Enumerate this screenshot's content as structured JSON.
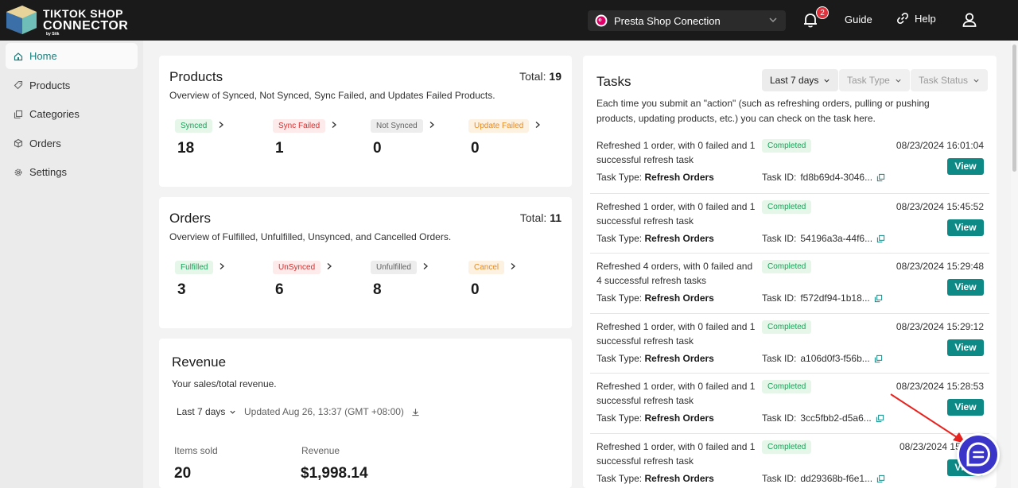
{
  "header": {
    "logo": {
      "line1": "TIKTOK SHOP",
      "line2": "CONNECTOR",
      "line3": "by Sitk"
    },
    "shop_selector": "Presta Shop Conection",
    "notification_count": "2",
    "guide": "Guide",
    "help": "Help"
  },
  "sidebar": {
    "items": [
      {
        "label": "Home",
        "icon": "home-icon"
      },
      {
        "label": "Products",
        "icon": "tag-icon"
      },
      {
        "label": "Categories",
        "icon": "copy-icon"
      },
      {
        "label": "Orders",
        "icon": "box-icon"
      },
      {
        "label": "Settings",
        "icon": "gear-icon"
      }
    ]
  },
  "products": {
    "title": "Products",
    "total_label": "Total: ",
    "total": "19",
    "subtitle": "Overview of Synced, Not Synced, Sync Failed, and Updates Failed Products.",
    "stats": [
      {
        "label": "Synced",
        "value": "18",
        "color": "#18a058"
      },
      {
        "label": "Sync Failed",
        "value": "1",
        "color": "#d32f2f"
      },
      {
        "label": "Not Synced",
        "value": "0",
        "color": "#616161"
      },
      {
        "label": "Update Failed",
        "value": "0",
        "color": "#e58a1f"
      }
    ]
  },
  "orders": {
    "title": "Orders",
    "total_label": "Total: ",
    "total": "11",
    "subtitle": "Overview of Fulfilled, Unfulfilled, Unsynced, and Cancelled Orders.",
    "stats": [
      {
        "label": "Fulfilled",
        "value": "3",
        "color": "#18a058"
      },
      {
        "label": "UnSynced",
        "value": "6",
        "color": "#d32f2f"
      },
      {
        "label": "Unfulfilled",
        "value": "8",
        "color": "#616161"
      },
      {
        "label": "Cancel",
        "value": "0",
        "color": "#e58a1f"
      }
    ]
  },
  "revenue": {
    "title": "Revenue",
    "subtitle": "Your sales/total revenue.",
    "range": "Last 7 days",
    "updated": "Updated Aug 26, 13:37 (GMT +08:00)",
    "items_sold_label": "Items sold",
    "items_sold": "20",
    "revenue_label": "Revenue",
    "revenue_value": "$1,998.14"
  },
  "tasks": {
    "title": "Tasks",
    "filters": {
      "range": "Last 7 days",
      "type": "Task Type",
      "status": "Task Status"
    },
    "description": "Each time you submit an \"action\" (such as refreshing orders, pulling or pushing products, updating products, etc.) you can check on the task here.",
    "type_label": "Task Type: ",
    "id_label": "Task ID: ",
    "view_label": "View",
    "items": [
      {
        "desc": "Refreshed 1 order, with 0 failed and 1 successful refresh task",
        "status": "Completed",
        "date": "08/23/2024 16:01:04",
        "type": "Refresh Orders",
        "id": "fd8b69d4-3046..."
      },
      {
        "desc": "Refreshed 1 order, with 0 failed and 1 successful refresh task",
        "status": "Completed",
        "date": "08/23/2024 15:45:52",
        "type": "Refresh Orders",
        "id": "54196a3a-44f6..."
      },
      {
        "desc": "Refreshed 4 orders, with 0 failed and 4 successful refresh tasks",
        "status": "Completed",
        "date": "08/23/2024 15:29:48",
        "type": "Refresh Orders",
        "id": "f572df94-1b18..."
      },
      {
        "desc": "Refreshed 1 order, with 0 failed and 1 successful refresh task",
        "status": "Completed",
        "date": "08/23/2024 15:29:12",
        "type": "Refresh Orders",
        "id": "a106d0f3-f56b..."
      },
      {
        "desc": "Refreshed 1 order, with 0 failed and 1 successful refresh task",
        "status": "Completed",
        "date": "08/23/2024 15:28:53",
        "type": "Refresh Orders",
        "id": "3cc5fbb2-d5a6..."
      },
      {
        "desc": "Refreshed 1 order, with 0 failed and 1 successful refresh task",
        "status": "Completed",
        "date": "08/23/2024 15",
        "type": "Refresh Orders",
        "id": "dd29368b-f6e1..."
      }
    ]
  },
  "colors": {
    "accent": "#0e8a86",
    "header_bg": "#1a1a1a",
    "chat": "#3a34c9"
  }
}
